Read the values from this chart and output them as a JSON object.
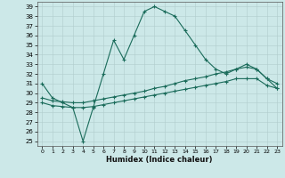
{
  "xlabel": "Humidex (Indice chaleur)",
  "xlim": [
    -0.5,
    23.5
  ],
  "ylim": [
    24.5,
    39.5
  ],
  "xticks": [
    0,
    1,
    2,
    3,
    4,
    5,
    6,
    7,
    8,
    9,
    10,
    11,
    12,
    13,
    14,
    15,
    16,
    17,
    18,
    19,
    20,
    21,
    22,
    23
  ],
  "yticks": [
    25,
    26,
    27,
    28,
    29,
    30,
    31,
    32,
    33,
    34,
    35,
    36,
    37,
    38,
    39
  ],
  "background": "#cce8e8",
  "line_color": "#1a6b5a",
  "grid_color": "#b0cccc",
  "line1_x": [
    0,
    1,
    2,
    3,
    4,
    5,
    6,
    7,
    8,
    9,
    10,
    11,
    12,
    13,
    14,
    15,
    16,
    17,
    18,
    19,
    20,
    21,
    22,
    23
  ],
  "line1_y": [
    31.0,
    29.5,
    29.0,
    28.5,
    25.0,
    28.5,
    32.0,
    35.5,
    33.5,
    36.0,
    38.5,
    39.0,
    38.5,
    38.0,
    36.5,
    35.0,
    33.5,
    32.5,
    32.0,
    32.5,
    33.0,
    32.5,
    31.5,
    30.5
  ],
  "line2_x": [
    0,
    1,
    2,
    3,
    4,
    5,
    6,
    7,
    8,
    9,
    10,
    11,
    12,
    13,
    14,
    15,
    16,
    17,
    18,
    19,
    20,
    21,
    22,
    23
  ],
  "line2_y": [
    29.5,
    29.2,
    29.1,
    29.0,
    29.0,
    29.2,
    29.4,
    29.6,
    29.8,
    30.0,
    30.2,
    30.5,
    30.7,
    31.0,
    31.3,
    31.5,
    31.7,
    32.0,
    32.2,
    32.5,
    32.7,
    32.5,
    31.5,
    31.0
  ],
  "line3_x": [
    0,
    1,
    2,
    3,
    4,
    5,
    6,
    7,
    8,
    9,
    10,
    11,
    12,
    13,
    14,
    15,
    16,
    17,
    18,
    19,
    20,
    21,
    22,
    23
  ],
  "line3_y": [
    29.0,
    28.7,
    28.6,
    28.5,
    28.5,
    28.6,
    28.8,
    29.0,
    29.2,
    29.4,
    29.6,
    29.8,
    30.0,
    30.2,
    30.4,
    30.6,
    30.8,
    31.0,
    31.2,
    31.5,
    31.5,
    31.5,
    30.8,
    30.5
  ]
}
